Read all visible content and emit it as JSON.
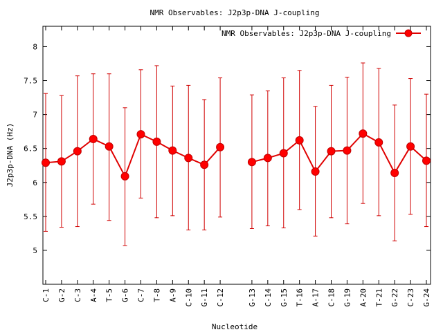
{
  "chart_data": {
    "type": "line",
    "title": "NMR Observables: J2p3p-DNA J-coupling",
    "xlabel": "Nucleotide",
    "ylabel": "J2p3p-DNA (Hz)",
    "ylim": [
      4.5,
      8.3
    ],
    "yticks": [
      5,
      5.5,
      6,
      6.5,
      7,
      7.5,
      8
    ],
    "ytick_labels": [
      "5",
      "5.5",
      "6",
      "6.5",
      "7",
      "7.5",
      "8"
    ],
    "legend_position": "top-right",
    "grid": false,
    "color": "#ff0000",
    "categories": [
      "C-1",
      "G-2",
      "C-3",
      "A-4",
      "T-5",
      "G-6",
      "C-7",
      "T-8",
      "A-9",
      "C-10",
      "G-11",
      "C-12",
      "G-13",
      "C-14",
      "G-15",
      "T-16",
      "A-17",
      "C-18",
      "G-19",
      "A-20",
      "T-21",
      "G-22",
      "C-23",
      "G-24"
    ],
    "segment_breaks": [
      12
    ],
    "series": [
      {
        "name": "NMR Observables: J2p3p-DNA J-coupling",
        "values": [
          6.29,
          6.31,
          6.46,
          6.64,
          6.53,
          6.09,
          6.71,
          6.6,
          6.47,
          6.36,
          6.26,
          6.52,
          6.3,
          6.36,
          6.43,
          6.62,
          6.16,
          6.46,
          6.47,
          6.72,
          6.59,
          6.14,
          6.53,
          6.32
        ],
        "err_low": [
          5.28,
          5.34,
          5.35,
          5.68,
          5.44,
          5.07,
          5.77,
          5.48,
          5.51,
          5.3,
          5.3,
          5.49,
          5.32,
          5.36,
          5.33,
          5.6,
          5.21,
          5.48,
          5.39,
          5.69,
          5.51,
          5.14,
          5.53,
          5.35
        ],
        "err_high": [
          7.31,
          7.28,
          7.57,
          7.6,
          7.6,
          7.1,
          7.66,
          7.72,
          7.42,
          7.43,
          7.22,
          7.54,
          7.29,
          7.35,
          7.54,
          7.65,
          7.12,
          7.43,
          7.55,
          7.76,
          7.68,
          7.14,
          7.53,
          7.3
        ]
      }
    ]
  }
}
